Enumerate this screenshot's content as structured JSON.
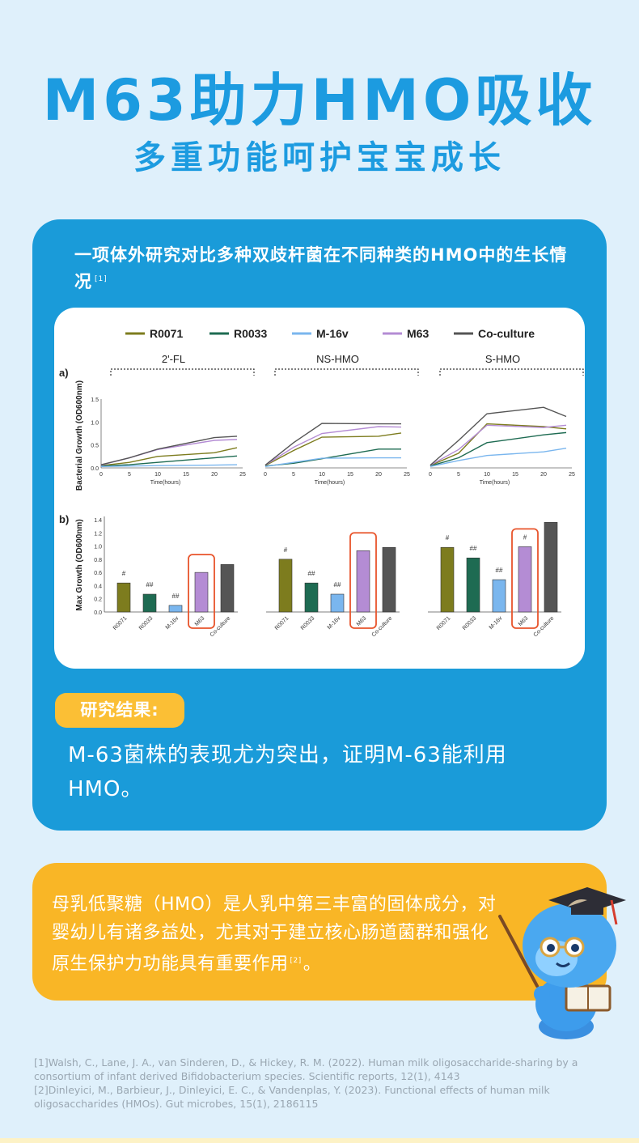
{
  "header": {
    "title": "M63助力HMO吸收",
    "subtitle": "多重功能呵护宝宝成长"
  },
  "study": {
    "intro": "一项体外研究对比多种双歧杆菌在不同种类的HMO中的生长情况",
    "intro_ref": "[1]"
  },
  "colors": {
    "brand_blue": "#1a9bd9",
    "accent_orange": "#f9b626",
    "highlight_red": "#e8542b"
  },
  "chart_data": [
    {
      "type": "line",
      "panel_label": "a)",
      "ylabel": "Bacterial Growth (OD600nm)",
      "xlabel": "Time(hours)",
      "xlim": [
        0,
        25
      ],
      "ylim": [
        0,
        1.5
      ],
      "x_ticks": [
        0,
        5,
        10,
        15,
        20,
        25
      ],
      "y_ticks": [
        0,
        0.5,
        1.0,
        1.5
      ],
      "x": [
        0,
        5,
        10,
        20,
        24
      ],
      "groups": [
        {
          "name": "2'-FL",
          "series": [
            {
              "name": "R0071",
              "values": [
                0.05,
                0.12,
                0.25,
                0.33,
                0.44
              ]
            },
            {
              "name": "R0033",
              "values": [
                0.04,
                0.07,
                0.12,
                0.22,
                0.26
              ]
            },
            {
              "name": "M-16v",
              "values": [
                0.03,
                0.04,
                0.05,
                0.06,
                0.07
              ]
            },
            {
              "name": "M63",
              "values": [
                0.06,
                0.22,
                0.4,
                0.6,
                0.62
              ]
            },
            {
              "name": "Co-culture",
              "values": [
                0.07,
                0.22,
                0.41,
                0.66,
                0.69
              ]
            }
          ]
        },
        {
          "name": "NS-HMO",
          "series": [
            {
              "name": "R0071",
              "values": [
                0.05,
                0.38,
                0.67,
                0.69,
                0.76
              ]
            },
            {
              "name": "R0033",
              "values": [
                0.04,
                0.1,
                0.2,
                0.41,
                0.41
              ]
            },
            {
              "name": "M-16v",
              "values": [
                0.03,
                0.12,
                0.21,
                0.22,
                0.22
              ]
            },
            {
              "name": "M63",
              "values": [
                0.06,
                0.45,
                0.75,
                0.9,
                0.89
              ]
            },
            {
              "name": "Co-culture",
              "values": [
                0.06,
                0.55,
                0.97,
                0.96,
                0.96
              ]
            }
          ]
        },
        {
          "name": "S-HMO",
          "series": [
            {
              "name": "R0071",
              "values": [
                0.05,
                0.32,
                0.96,
                0.9,
                0.85
              ]
            },
            {
              "name": "R0033",
              "values": [
                0.04,
                0.22,
                0.55,
                0.72,
                0.77
              ]
            },
            {
              "name": "M-16v",
              "values": [
                0.03,
                0.16,
                0.27,
                0.35,
                0.43
              ]
            },
            {
              "name": "M63",
              "values": [
                0.06,
                0.4,
                0.93,
                0.88,
                0.93
              ]
            },
            {
              "name": "Co-culture",
              "values": [
                0.06,
                0.6,
                1.18,
                1.32,
                1.12
              ]
            }
          ]
        }
      ]
    },
    {
      "type": "bar",
      "panel_label": "b)",
      "ylabel": "Max Growth (OD600nm)",
      "ylim": [
        0,
        1.4
      ],
      "y_ticks": [
        0.0,
        0.2,
        0.4,
        0.6,
        0.8,
        1.0,
        1.2,
        1.4
      ],
      "categories": [
        "R0071",
        "R0033",
        "M-16v",
        "M63",
        "Co-culture"
      ],
      "highlight": "M63",
      "groups": [
        {
          "name": "2'-FL",
          "values": [
            0.44,
            0.27,
            0.1,
            0.6,
            0.72
          ],
          "marks": [
            "#",
            "##",
            "##",
            "",
            ""
          ]
        },
        {
          "name": "NS-HMO",
          "values": [
            0.8,
            0.44,
            0.27,
            0.93,
            0.98
          ],
          "marks": [
            "#",
            "##",
            "##",
            "",
            ""
          ]
        },
        {
          "name": "S-HMO",
          "values": [
            0.98,
            0.82,
            0.49,
            0.99,
            1.36
          ],
          "marks": [
            "#",
            "##",
            "##",
            "#",
            ""
          ]
        }
      ]
    }
  ],
  "legend": [
    {
      "name": "R0071",
      "color": "#7d7c1e"
    },
    {
      "name": "R0033",
      "color": "#1e6b52"
    },
    {
      "name": "M-16v",
      "color": "#7ab6ee"
    },
    {
      "name": "M63",
      "color": "#b48cd4"
    },
    {
      "name": "Co-culture",
      "color": "#555555"
    }
  ],
  "result": {
    "badge": "研究结果:",
    "text": "M-63菌株的表现尤为突出，证明M-63能利用HMO。"
  },
  "note": {
    "text": "母乳低聚糖（HMO）是人乳中第三丰富的固体成分，对婴幼儿有诸多益处，尤其对于建立核心肠道菌群和强化原生保护力功能具有重要作用",
    "ref": "[2]",
    "end": "。"
  },
  "mascot": {
    "icon": "mascot-graduate-icon"
  },
  "references": [
    "[1]Walsh, C., Lane, J. A., van Sinderen, D., & Hickey, R. M. (2022). Human milk oligosaccharide-sharing by a consortium of infant derived Bifidobacterium species. Scientific reports, 12(1), 4143",
    "[2]Dinleyici, M., Barbieur, J., Dinleyici, E. C., & Vandenplas, Y. (2023). Functional effects of human milk oligosaccharides (HMOs). Gut microbes, 15(1), 2186115"
  ]
}
